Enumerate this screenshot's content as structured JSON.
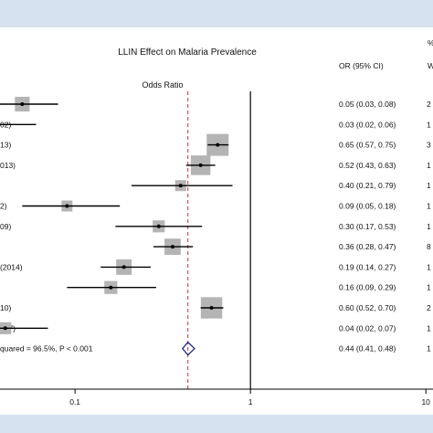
{
  "chart_data": {
    "type": "forest",
    "title": "LLIN Effect on Malaria Prevalence",
    "column_header_or": "OR (95% CI)",
    "column_header_weight_partial": "W",
    "column_header_weight_mark": "%",
    "axis_header": "Odds Ratio",
    "x_scale": "log",
    "xlim": [
      0.013,
      20
    ],
    "x_ticks": [
      0.1,
      1,
      10
    ],
    "x_tick_labels": [
      "0.1",
      "1",
      "10"
    ],
    "null_line": 1,
    "pooled_line": 0.44,
    "studies": [
      {
        "label": "",
        "or": 0.05,
        "lower": 0.03,
        "upper": 0.08,
        "ci_text": "0.05 (0.03, 0.08)",
        "weight_rel": 0.45,
        "weight_text": "2"
      },
      {
        "label": "02)",
        "or": 0.03,
        "lower": 0.02,
        "upper": 0.06,
        "ci_text": "0.03 (0.02, 0.06)",
        "weight_rel": 0.2,
        "weight_text": "1",
        "arrow_left": true
      },
      {
        "label": "13)",
        "or": 0.65,
        "lower": 0.57,
        "upper": 0.75,
        "ci_text": "0.65 (0.57, 0.75)",
        "weight_rel": 1.0,
        "weight_text": "3"
      },
      {
        "label": "013)",
        "or": 0.52,
        "lower": 0.43,
        "upper": 0.63,
        "ci_text": "0.52 (0.43, 0.63)",
        "weight_rel": 0.8,
        "weight_text": "1"
      },
      {
        "label": "",
        "or": 0.4,
        "lower": 0.21,
        "upper": 0.79,
        "ci_text": "0.40 (0.21, 0.79)",
        "weight_rel": 0.25,
        "weight_text": "1"
      },
      {
        "label": "2)",
        "or": 0.09,
        "lower": 0.05,
        "upper": 0.18,
        "ci_text": "0.09 (0.05, 0.18)",
        "weight_rel": 0.25,
        "weight_text": "1"
      },
      {
        "label": "09)",
        "or": 0.3,
        "lower": 0.17,
        "upper": 0.53,
        "ci_text": "0.30 (0.17, 0.53)",
        "weight_rel": 0.3,
        "weight_text": "1"
      },
      {
        "label": "",
        "or": 0.36,
        "lower": 0.28,
        "upper": 0.47,
        "ci_text": "0.36 (0.28, 0.47)",
        "weight_rel": 0.55,
        "weight_text": "8"
      },
      {
        "label": "(2014)",
        "or": 0.19,
        "lower": 0.14,
        "upper": 0.27,
        "ci_text": "0.19 (0.14, 0.27)",
        "weight_rel": 0.5,
        "weight_text": "1"
      },
      {
        "label": "",
        "or": 0.16,
        "lower": 0.09,
        "upper": 0.29,
        "ci_text": "0.16 (0.09, 0.29)",
        "weight_rel": 0.35,
        "weight_text": "1"
      },
      {
        "label": "10)",
        "or": 0.6,
        "lower": 0.52,
        "upper": 0.7,
        "ci_text": "0.60 (0.52, 0.70)",
        "weight_rel": 0.95,
        "weight_text": "2"
      },
      {
        "label": "007)",
        "or": 0.04,
        "lower": 0.02,
        "upper": 0.07,
        "ci_text": "0.04 (0.02, 0.07)",
        "weight_rel": 0.3,
        "weight_text": "1"
      }
    ],
    "overall": {
      "label": "quared = 96.5%, P < 0.001",
      "or": 0.44,
      "lower": 0.41,
      "upper": 0.48,
      "ci_text": "0.44 (0.41, 0.48)",
      "weight_text": "1"
    },
    "colors": {
      "frame": "#d6e2ef",
      "box": "#b4b4b4",
      "diamond": "#1f2f8f",
      "pooled_line": "#d0303a",
      "ci": "#000000"
    }
  }
}
